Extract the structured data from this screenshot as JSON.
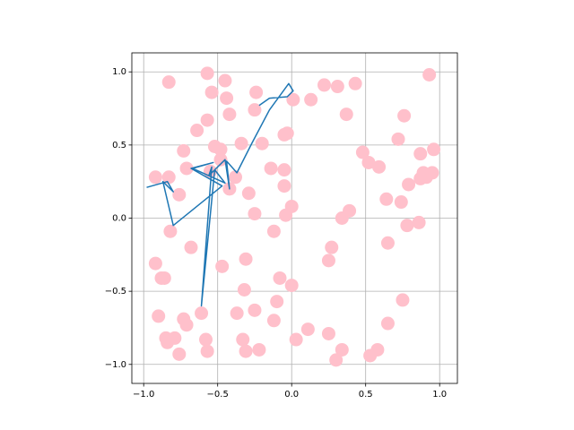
{
  "chart_data": {
    "type": "scatter",
    "grid": true,
    "xlim": [
      -1.08,
      1.12
    ],
    "ylim": [
      -1.13,
      1.13
    ],
    "xticks": [
      {
        "value": -1.0,
        "label": "−1.0"
      },
      {
        "value": -0.5,
        "label": "−0.5"
      },
      {
        "value": 0,
        "label": "0.0"
      },
      {
        "value": 0.5,
        "label": "0.5"
      },
      {
        "value": 1.0,
        "label": "1.0"
      }
    ],
    "yticks": [
      {
        "value": -1.0,
        "label": "−1.0"
      },
      {
        "value": -0.5,
        "label": "−0.5"
      },
      {
        "value": 0,
        "label": "0.0"
      },
      {
        "value": 0.5,
        "label": "0.5"
      },
      {
        "value": 1.0,
        "label": "1.0"
      }
    ],
    "series": [
      {
        "type": "scatter",
        "color": "#ffc0cb",
        "x": [
          -0.57,
          -0.45,
          -0.83,
          -0.54,
          -0.44,
          -0.24,
          0.01,
          0.13,
          0.22,
          0.31,
          0.43,
          0.93,
          -0.25,
          -0.42,
          -0.57,
          0.37,
          0.76,
          -0.64,
          -0.05,
          -0.03,
          -0.2,
          -0.34,
          -0.52,
          -0.48,
          -0.73,
          0.72,
          0.48,
          0.52,
          0.96,
          0.87,
          -0.48,
          -0.71,
          -0.14,
          -0.05,
          -0.55,
          -0.38,
          0.59,
          0.91,
          0.95,
          0.89,
          -0.92,
          -0.83,
          0.87,
          0.79,
          -0.05,
          -0.42,
          -0.29,
          -0.76,
          0.64,
          0.74,
          0.0,
          -0.25,
          -0.04,
          0.34,
          0.39,
          -0.82,
          -0.12,
          0.86,
          0.78,
          0.27,
          -0.68,
          0.65,
          0.25,
          -0.31,
          -0.92,
          -0.47,
          -0.88,
          -0.86,
          -0.08,
          0.0,
          -0.32,
          -0.1,
          -0.61,
          -0.37,
          -0.25,
          0.75,
          -0.12,
          -0.73,
          -0.71,
          0.65,
          -0.9,
          -0.85,
          -0.79,
          -0.84,
          0.11,
          0.25,
          -0.58,
          -0.33,
          0.03,
          -0.76,
          -0.57,
          -0.31,
          -0.22,
          0.34,
          0.3,
          0.58,
          0.53
        ],
        "y": [
          0.99,
          0.94,
          0.93,
          0.86,
          0.82,
          0.86,
          0.81,
          0.81,
          0.91,
          0.9,
          0.92,
          0.98,
          0.74,
          0.71,
          0.67,
          0.71,
          0.7,
          0.6,
          0.57,
          0.58,
          0.51,
          0.51,
          0.49,
          0.47,
          0.46,
          0.54,
          0.45,
          0.38,
          0.47,
          0.44,
          0.4,
          0.34,
          0.34,
          0.33,
          0.32,
          0.28,
          0.35,
          0.28,
          0.31,
          0.31,
          0.28,
          0.28,
          0.27,
          0.23,
          0.22,
          0.2,
          0.17,
          0.16,
          0.13,
          0.11,
          0.08,
          0.03,
          0.02,
          0.0,
          0.05,
          -0.09,
          -0.09,
          -0.03,
          -0.05,
          -0.2,
          -0.2,
          -0.17,
          -0.29,
          -0.28,
          -0.31,
          -0.33,
          -0.41,
          -0.41,
          -0.41,
          -0.46,
          -0.49,
          -0.57,
          -0.65,
          -0.65,
          -0.63,
          -0.56,
          -0.7,
          -0.69,
          -0.73,
          -0.72,
          -0.67,
          -0.82,
          -0.82,
          -0.85,
          -0.76,
          -0.79,
          -0.83,
          -0.83,
          -0.83,
          -0.93,
          -0.91,
          -0.91,
          -0.9,
          -0.9,
          -0.97,
          -0.9,
          -0.94
        ]
      },
      {
        "type": "line",
        "color": "#1f77b4",
        "x": [
          -0.98,
          -0.84,
          -0.8,
          -0.87,
          -0.8,
          -0.47,
          -0.68,
          -0.53,
          -0.67,
          -0.45,
          -0.52,
          -0.61,
          -0.54,
          -0.56,
          -0.45,
          -0.42,
          -0.44,
          -0.37,
          -0.27,
          -0.15,
          -0.02,
          0.01,
          -0.03,
          -0.15,
          -0.22
        ],
        "y": [
          0.21,
          0.25,
          0.18,
          0.25,
          -0.05,
          0.22,
          0.34,
          0.38,
          0.34,
          0.24,
          0.33,
          -0.6,
          0.35,
          0.29,
          0.4,
          0.2,
          0.39,
          0.31,
          0.51,
          0.74,
          0.92,
          0.87,
          0.83,
          0.82,
          0.77
        ]
      }
    ]
  }
}
